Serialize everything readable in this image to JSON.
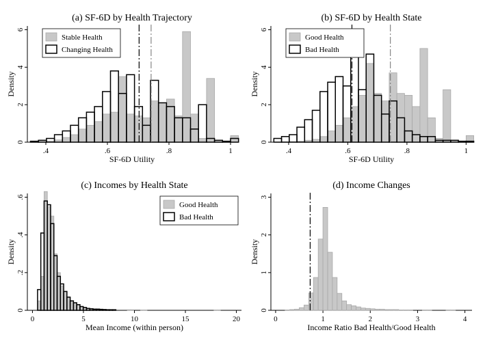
{
  "chart_data": [
    {
      "type": "histogram",
      "title": "(a) SF-6D by Health Trajectory",
      "xlabel": "SF-6D Utility",
      "ylabel": "Density",
      "xlim": [
        0.34,
        1.02
      ],
      "ylim": [
        0,
        6.2
      ],
      "xticks": [
        0.4,
        0.6,
        0.8,
        1.0
      ],
      "xtick_labels": [
        ".4",
        ".6",
        ".8",
        "1"
      ],
      "yticks": [
        0,
        2,
        4,
        6
      ],
      "ytick_labels": [
        "0",
        "2",
        "4",
        "6"
      ],
      "legend_position": "top-left",
      "bin_width": 0.026,
      "series": [
        {
          "name": "Stable Health",
          "style": "filled",
          "bins": [
            0.35,
            0.376,
            0.402,
            0.428,
            0.454,
            0.48,
            0.506,
            0.532,
            0.558,
            0.584,
            0.61,
            0.636,
            0.662,
            0.688,
            0.714,
            0.74,
            0.766,
            0.792,
            0.818,
            0.844,
            0.87,
            0.896,
            0.922,
            0.948,
            0.974,
            1.0
          ],
          "values": [
            0.02,
            0.04,
            0.06,
            0.12,
            0.25,
            0.4,
            0.7,
            0.9,
            1.1,
            1.5,
            1.6,
            3.5,
            1.5,
            1.4,
            1.3,
            2.2,
            2.1,
            2.3,
            1.4,
            5.9,
            1.5,
            0.2,
            3.4,
            0.1,
            0.05,
            0.35
          ]
        },
        {
          "name": "Changing Health",
          "style": "outline",
          "bins": [
            0.35,
            0.376,
            0.402,
            0.428,
            0.454,
            0.48,
            0.506,
            0.532,
            0.558,
            0.584,
            0.61,
            0.636,
            0.662,
            0.688,
            0.714,
            0.74,
            0.766,
            0.792,
            0.818,
            0.844,
            0.87,
            0.896,
            0.922,
            0.948,
            0.974,
            1.0
          ],
          "values": [
            0.05,
            0.1,
            0.2,
            0.4,
            0.6,
            0.9,
            1.3,
            1.6,
            1.9,
            2.7,
            3.8,
            2.6,
            3.6,
            1.9,
            0.9,
            3.3,
            2.1,
            1.9,
            1.3,
            1.3,
            0.7,
            2.0,
            0.2,
            0.1,
            0.05,
            0.2
          ]
        }
      ],
      "reference_lines": [
        {
          "x": 0.703,
          "style": "dark-dashdot"
        },
        {
          "x": 0.742,
          "style": "light-dashdot"
        }
      ]
    },
    {
      "type": "histogram",
      "title": "(b) SF-6D by Health State",
      "xlabel": "SF-6D Utility",
      "ylabel": "Density",
      "xlim": [
        0.34,
        1.02
      ],
      "ylim": [
        0,
        6.2
      ],
      "xticks": [
        0.4,
        0.6,
        0.8,
        1.0
      ],
      "xtick_labels": [
        ".4",
        ".6",
        ".8",
        "1"
      ],
      "yticks": [
        0,
        2,
        4,
        6
      ],
      "ytick_labels": [
        "0",
        "2",
        "4",
        "6"
      ],
      "legend_position": "top-left",
      "bin_width": 0.026,
      "series": [
        {
          "name": "Good Health",
          "style": "filled",
          "bins": [
            0.35,
            0.376,
            0.402,
            0.428,
            0.454,
            0.48,
            0.506,
            0.532,
            0.558,
            0.584,
            0.61,
            0.636,
            0.662,
            0.688,
            0.714,
            0.74,
            0.766,
            0.792,
            0.818,
            0.844,
            0.87,
            0.896,
            0.922,
            0.948,
            0.974,
            1.0
          ],
          "values": [
            0.01,
            0.02,
            0.03,
            0.05,
            0.1,
            0.15,
            0.3,
            0.6,
            0.9,
            1.3,
            1.9,
            2.5,
            4.2,
            2.6,
            2.2,
            3.7,
            2.6,
            2.5,
            1.9,
            5.0,
            1.3,
            0.2,
            2.8,
            0.1,
            0.02,
            0.35
          ]
        },
        {
          "name": "Bad Health",
          "style": "outline",
          "bins": [
            0.35,
            0.376,
            0.402,
            0.428,
            0.454,
            0.48,
            0.506,
            0.532,
            0.558,
            0.584,
            0.61,
            0.636,
            0.662,
            0.688,
            0.714,
            0.74,
            0.766,
            0.792,
            0.818,
            0.844,
            0.87,
            0.896,
            0.922,
            0.948,
            0.974,
            1.0
          ],
          "values": [
            0.2,
            0.3,
            0.4,
            0.8,
            1.2,
            1.7,
            2.7,
            3.2,
            3.5,
            3.0,
            6.0,
            2.8,
            4.7,
            2.5,
            1.5,
            2.2,
            1.3,
            0.6,
            0.4,
            0.3,
            0.3,
            0.1,
            0.1,
            0.1,
            0.05,
            0.05
          ]
        }
      ],
      "reference_lines": [
        {
          "x": 0.614,
          "style": "dark-dashdot"
        },
        {
          "x": 0.744,
          "style": "light-dashdot"
        }
      ]
    },
    {
      "type": "histogram",
      "title": "(c) Incomes by Health State",
      "xlabel": "Mean Income (within person)",
      "ylabel": "Density",
      "xlim": [
        -0.5,
        20.5
      ],
      "ylim": [
        0,
        0.62
      ],
      "xticks": [
        0,
        5,
        10,
        15,
        20
      ],
      "xtick_labels": [
        "0",
        "5",
        "10",
        "15",
        "20"
      ],
      "yticks": [
        0,
        0.2,
        0.4,
        0.6
      ],
      "ytick_labels": [
        "0",
        ".2",
        ".4",
        ".6"
      ],
      "legend_position": "top-right",
      "bin_width": 0.32,
      "series": [
        {
          "name": "Good Health",
          "style": "filled",
          "bins": [
            0.5,
            0.82,
            1.14,
            1.46,
            1.78,
            2.1,
            2.42,
            2.74,
            3.06,
            3.38,
            3.7,
            4.02,
            4.34,
            4.66,
            4.98,
            5.3,
            5.62,
            5.94,
            6.26,
            6.58,
            6.9,
            7.22,
            7.54,
            7.86,
            9.3,
            9.62,
            10.6,
            10.92,
            17.8,
            18.12
          ],
          "values": [
            0.05,
            0.18,
            0.63,
            0.55,
            0.5,
            0.3,
            0.2,
            0.13,
            0.1,
            0.07,
            0.05,
            0.04,
            0.03,
            0.02,
            0.015,
            0.01,
            0.01,
            0.008,
            0.008,
            0.006,
            0.005,
            0.004,
            0.004,
            0.003,
            0.003,
            0.003,
            0.002,
            0.002,
            0.002,
            0.002
          ]
        },
        {
          "name": "Bad Health",
          "style": "outline",
          "bins": [
            0.5,
            0.82,
            1.14,
            1.46,
            1.78,
            2.1,
            2.42,
            2.74,
            3.06,
            3.38,
            3.7,
            4.02,
            4.34,
            4.66,
            4.98,
            5.3,
            5.62,
            5.94,
            6.26,
            6.58,
            6.9,
            7.22,
            7.54,
            7.86
          ],
          "values": [
            0.11,
            0.41,
            0.58,
            0.56,
            0.46,
            0.29,
            0.18,
            0.14,
            0.1,
            0.07,
            0.05,
            0.04,
            0.03,
            0.02,
            0.015,
            0.01,
            0.008,
            0.006,
            0.006,
            0.005,
            0.004,
            0.003,
            0.003,
            0.003
          ]
        }
      ]
    },
    {
      "type": "histogram",
      "title": "(d) Income Changes",
      "xlabel": "Income Ratio Bad Health/Good Health",
      "ylabel": "Density",
      "xlim": [
        -0.1,
        4.15
      ],
      "ylim": [
        0,
        3.1
      ],
      "xticks": [
        0,
        1,
        2,
        3,
        4
      ],
      "xtick_labels": [
        "0",
        "1",
        "2",
        "3",
        "4"
      ],
      "yticks": [
        0,
        1,
        2,
        3
      ],
      "ytick_labels": [
        "0",
        "1",
        "2",
        "3"
      ],
      "bin_width": 0.1,
      "series": [
        {
          "style": "filled",
          "bins": [
            0.2,
            0.3,
            0.4,
            0.5,
            0.6,
            0.7,
            0.8,
            0.9,
            1.0,
            1.1,
            1.2,
            1.3,
            1.4,
            1.5,
            1.6,
            1.7,
            1.8,
            1.9,
            2.0,
            2.1,
            2.2,
            2.3,
            2.4,
            2.5,
            2.6,
            2.7,
            2.8,
            3.1,
            3.2,
            3.6,
            3.7
          ],
          "values": [
            0.01,
            0.02,
            0.03,
            0.07,
            0.14,
            0.46,
            0.87,
            1.89,
            2.73,
            1.54,
            0.87,
            0.45,
            0.25,
            0.15,
            0.12,
            0.09,
            0.06,
            0.05,
            0.04,
            0.03,
            0.03,
            0.02,
            0.02,
            0.02,
            0.01,
            0.01,
            0.01,
            0.01,
            0.01,
            0.01,
            0.01
          ]
        }
      ],
      "reference_lines": [
        {
          "x": 0.73,
          "style": "dark-dashdot"
        }
      ]
    }
  ]
}
